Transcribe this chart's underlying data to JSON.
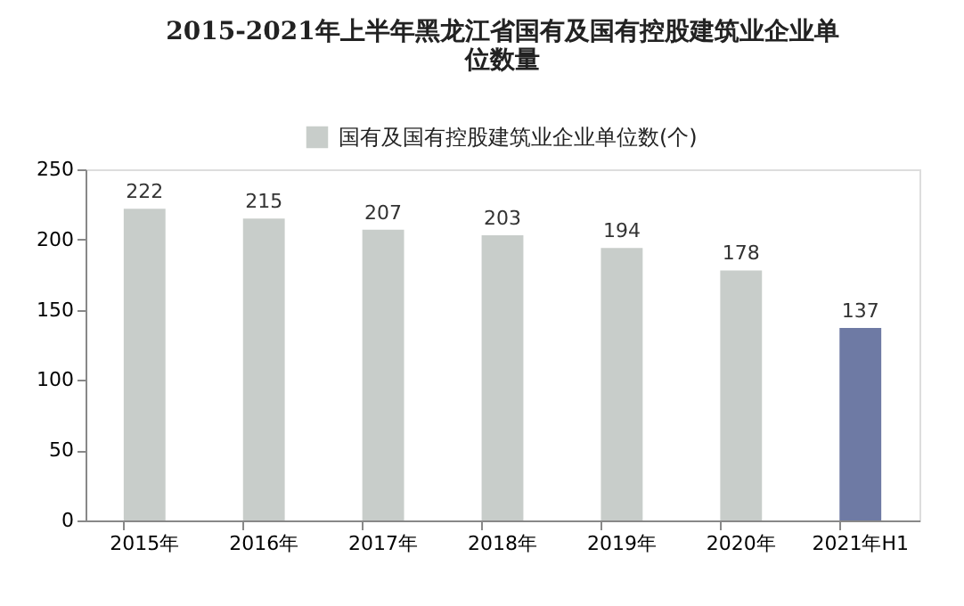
{
  "chart_data": {
    "type": "bar",
    "title": [
      "2015-2021年上半年黑龙江省国有及国有控股建筑业企业单",
      "位数量"
    ],
    "categories": [
      "2015年",
      "2016年",
      "2017年",
      "2018年",
      "2019年",
      "2020年",
      "2021年H1"
    ],
    "series": [
      {
        "name": "国有及国有控股建筑业企业单位数(个)",
        "color": "#c8cdca",
        "colors": [
          "#c8cdca",
          "#c8cdca",
          "#c8cdca",
          "#c8cdca",
          "#c8cdca",
          "#c8cdca",
          "#6e7aa4"
        ],
        "values": [
          222,
          215,
          207,
          203,
          194,
          178,
          137
        ]
      }
    ],
    "ylim": [
      0,
      250
    ],
    "yticks": [
      0,
      50,
      100,
      150,
      200,
      250
    ],
    "grid": false,
    "legend": "top",
    "data_labels": true
  }
}
